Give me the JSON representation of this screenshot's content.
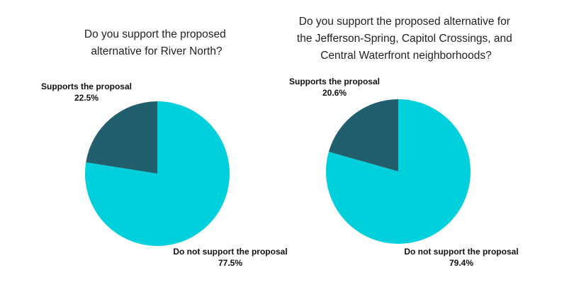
{
  "chart_data": [
    {
      "type": "pie",
      "title": "Do you support the proposed alternative for River North?",
      "slices": [
        {
          "label": "Supports the proposal",
          "value": 22.5,
          "value_label": "22.5%",
          "color": "#215f6e"
        },
        {
          "label": "Do not support the proposal",
          "value": 77.5,
          "value_label": "77.5%",
          "color": "#00d0dc"
        }
      ],
      "start_angle_deg": 0,
      "direction": "counterclockwise"
    },
    {
      "type": "pie",
      "title": "Do you support the proposed alternative for the Jefferson-Spring, Capitol Crossings, and Central Waterfront neighborhoods?",
      "slices": [
        {
          "label": "Supports the proposal",
          "value": 20.6,
          "value_label": "20.6%",
          "color": "#215f6e"
        },
        {
          "label": "Do not support the proposal",
          "value": 79.4,
          "value_label": "79.4%",
          "color": "#00d0dc"
        }
      ],
      "start_angle_deg": 0,
      "direction": "counterclockwise"
    }
  ]
}
